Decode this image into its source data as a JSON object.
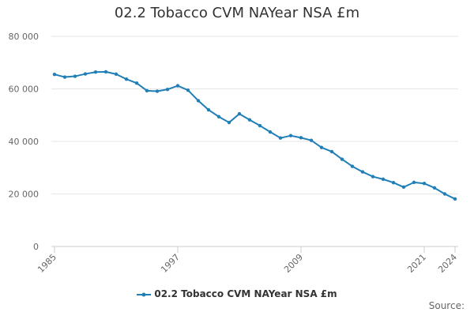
{
  "chart_data": {
    "type": "line",
    "title": "02.2 Tobacco CVM NAYear NSA £m",
    "xlabel": "",
    "ylabel": "",
    "x": [
      1985,
      1986,
      1987,
      1988,
      1989,
      1990,
      1991,
      1992,
      1993,
      1994,
      1995,
      1996,
      1997,
      1998,
      1999,
      2000,
      2001,
      2002,
      2003,
      2004,
      2005,
      2006,
      2007,
      2008,
      2009,
      2010,
      2011,
      2012,
      2013,
      2014,
      2015,
      2016,
      2017,
      2018,
      2019,
      2020,
      2021,
      2022,
      2023,
      2024
    ],
    "x_tick_labels": [
      "1985",
      "1997",
      "2009",
      "2021",
      "2024"
    ],
    "y_tick_labels": [
      "0",
      "20 000",
      "40 000",
      "60 000",
      "80 000"
    ],
    "ylim": [
      0,
      80000
    ],
    "series": [
      {
        "name": "02.2 Tobacco CVM NAYear NSA £m",
        "color": "#1f7fb6",
        "values": [
          65500,
          64500,
          64800,
          65700,
          66400,
          66500,
          65600,
          63700,
          62200,
          59300,
          59100,
          59800,
          61200,
          59500,
          55500,
          52000,
          49400,
          47200,
          50500,
          48200,
          46000,
          43600,
          41300,
          42200,
          41400,
          40400,
          37700,
          36100,
          33200,
          30500,
          28400,
          26600,
          25600,
          24300,
          22600,
          24400,
          24000,
          22300,
          20000,
          18100
        ]
      }
    ],
    "legend": "bottom-center",
    "source_label": "Source:"
  }
}
